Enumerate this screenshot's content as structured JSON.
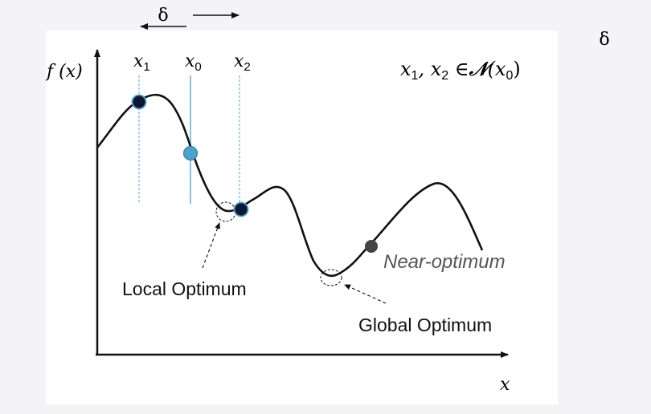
{
  "delta_symbol": "δ",
  "side_delta": "δ",
  "y_axis_label": "f (x)",
  "x_axis_label": "x",
  "points": {
    "x1": {
      "base": "x",
      "sub": "1"
    },
    "x0": {
      "base": "x",
      "sub": "0"
    },
    "x2": {
      "base": "x",
      "sub": "2"
    }
  },
  "neighborhood": {
    "lhs": "x",
    "sub1": "1",
    "sep": ", x",
    "sub2": "2",
    "rel": " ∈",
    "set": "𝒩",
    "open": "(x",
    "sub0": "0",
    "close": ")"
  },
  "labels": {
    "near_optimum": "Near-optimum",
    "local_optimum": "Local Optimum",
    "global_optimum": "Global Optimum"
  },
  "colors": {
    "curve": "#111111",
    "axes": "#111111",
    "guide_line": "#6cb4d8",
    "dark_point": "#0e1633",
    "mid_point": "#4ba3cc",
    "near_point": "#444444",
    "panel": "#ffffff"
  }
}
